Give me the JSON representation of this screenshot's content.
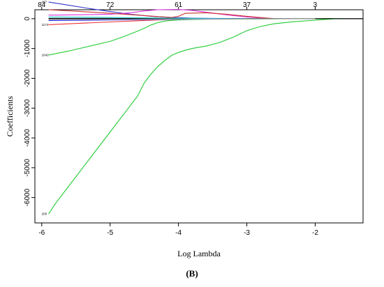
{
  "chart_data": {
    "type": "line",
    "xlabel": "Log Lambda",
    "ylabel": "Coefficients",
    "xlim": [
      -6.1,
      -1.3
    ],
    "ylim": [
      -6850,
      300
    ],
    "x_ticks": [
      -6,
      -5,
      -4,
      -3,
      -2
    ],
    "y_ticks": [
      0,
      -1000,
      -2000,
      -3000,
      -4000,
      -5000,
      -6000
    ],
    "top_axis": {
      "positions": [
        -6,
        -5,
        -4,
        -3,
        -2
      ],
      "labels": [
        "84",
        "72",
        "61",
        "37",
        "3"
      ]
    },
    "grid": false,
    "legend": "none",
    "series": [
      {
        "color": "#22cc33",
        "label": "200",
        "x": [
          -5.9,
          -5.8,
          -5.6,
          -5.3,
          -5.0,
          -4.8,
          -4.6,
          -4.5,
          -4.4,
          -4.3,
          -4.2,
          -4.1,
          -4.0,
          -3.9,
          -3.8,
          -3.6,
          -3.4,
          -3.2,
          -3.0,
          -2.8,
          -2.6,
          -2.3,
          -2.0,
          -1.7
        ],
        "y": [
          -6550,
          -6200,
          -5600,
          -4700,
          -3800,
          -3200,
          -2600,
          -2150,
          -1850,
          -1600,
          -1400,
          -1230,
          -1130,
          -1060,
          -1000,
          -920,
          -800,
          -620,
          -400,
          -260,
          -170,
          -100,
          -50,
          0
        ]
      },
      {
        "color": "#22cc33",
        "label": "1642",
        "x": [
          -5.9,
          -5.6,
          -5.3,
          -5.0,
          -4.8,
          -4.6,
          -4.5,
          -4.4,
          -4.3,
          -4.2,
          -4.1,
          -4.0,
          -3.8,
          -3.5,
          -3.0,
          -2.5,
          -2.0,
          -1.6
        ],
        "y": [
          -1220,
          -1080,
          -920,
          -760,
          -600,
          -420,
          -320,
          -210,
          -130,
          -80,
          -55,
          -40,
          -25,
          -15,
          -10,
          -5,
          0,
          0
        ]
      },
      {
        "color": "#3333cc",
        "label": "457",
        "x": [
          -5.9,
          -5.6,
          -5.3,
          -5.0,
          -4.7,
          -4.4,
          -4.1,
          -3.8,
          -3.5,
          -3.2,
          -2.8
        ],
        "y": [
          560,
          450,
          340,
          240,
          150,
          80,
          40,
          20,
          10,
          5,
          0
        ]
      },
      {
        "color": "#dd33dd",
        "x": [
          -5.9,
          -5.5,
          -5.0,
          -4.7,
          -4.5,
          -4.3,
          -4.0,
          -3.8,
          -3.6,
          -3.3,
          -3.0,
          -2.7
        ],
        "y": [
          120,
          130,
          150,
          200,
          260,
          300,
          310,
          280,
          220,
          130,
          60,
          10
        ]
      },
      {
        "color": "#cc3333",
        "x": [
          -5.9,
          -5.5,
          -5.0,
          -4.6,
          -4.3,
          -4.1,
          -4.0,
          -3.9,
          -3.6,
          -3.3,
          -3.0,
          -2.6
        ],
        "y": [
          300,
          250,
          180,
          120,
          70,
          40,
          80,
          180,
          200,
          150,
          80,
          0
        ]
      },
      {
        "color": "#ee3333",
        "label": "1174",
        "x": [
          -5.9,
          -5.5,
          -5.0,
          -4.6,
          -4.3,
          -4.0,
          -3.7,
          -3.4
        ],
        "y": [
          -200,
          -160,
          -110,
          -70,
          -40,
          -20,
          -10,
          0
        ]
      },
      {
        "color": "#000000",
        "x": [
          -5.9,
          -5.0,
          -4.0,
          -3.0,
          -2.0,
          -1.3
        ],
        "y": [
          10,
          10,
          5,
          2,
          0,
          0
        ]
      },
      {
        "color": "#22cccc",
        "x": [
          -5.9,
          -5.3,
          -4.6,
          -4.0,
          -3.5,
          -3.0
        ],
        "y": [
          60,
          50,
          30,
          15,
          5,
          0
        ]
      },
      {
        "color": "#2222ee",
        "x": [
          -5.9,
          -5.3,
          -4.6,
          -4.0,
          -3.5,
          -3.0
        ],
        "y": [
          -60,
          -50,
          -35,
          -20,
          -10,
          0
        ]
      },
      {
        "color": "#aaaaaa",
        "x": [
          -5.9,
          -5.0,
          -4.0,
          -3.0,
          -2.0
        ],
        "y": [
          -30,
          -25,
          -15,
          -5,
          0
        ]
      }
    ],
    "right_axis_labels": [],
    "left_curve_labels": [
      "457",
      "1174",
      "1642",
      "200"
    ]
  },
  "panel_label": "(B)"
}
